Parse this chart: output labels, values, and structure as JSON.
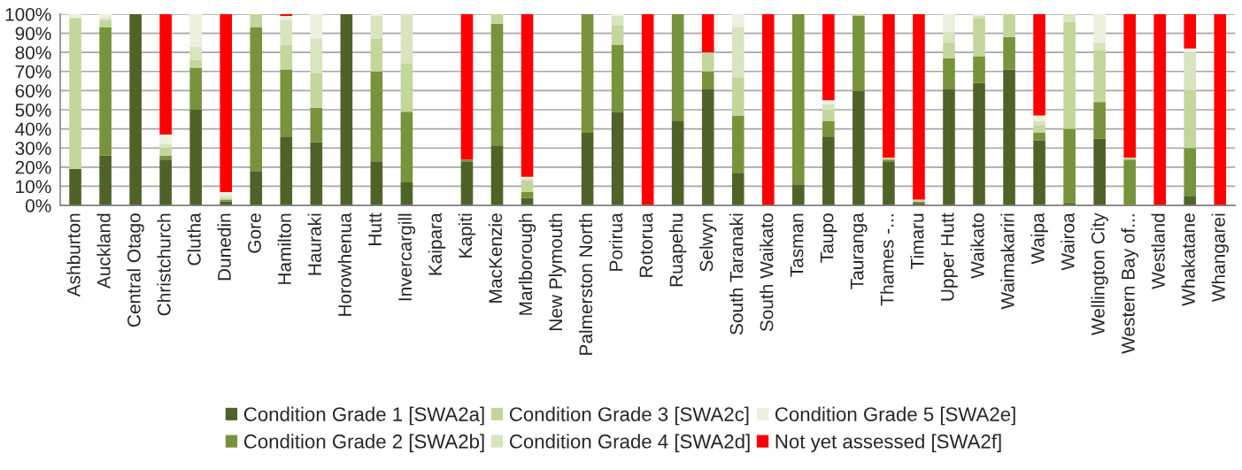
{
  "chart_data": {
    "type": "bar",
    "stacked": true,
    "categories": [
      "Ashburton",
      "Auckland",
      "Central Otago",
      "Christchurch",
      "Clutha",
      "Dunedin",
      "Gore",
      "Hamilton",
      "Hauraki",
      "Horowhenua",
      "Hutt",
      "Invercargill",
      "Kaipara",
      "Kapiti",
      "MacKenzie",
      "Marlborough",
      "New Plymouth",
      "Palmerston North",
      "Porirua",
      "Rotorua",
      "Ruapehu",
      "Selwyn",
      "South Taranaki",
      "South Waikato",
      "Tasman",
      "Taupo",
      "Tauranga",
      "Thames -...",
      "Timaru",
      "Upper Hutt",
      "Waikato",
      "Waimakariri",
      "Waipa",
      "Wairoa",
      "Wellington City",
      "Western Bay of...",
      "Westland",
      "Whakatane",
      "Whangarei"
    ],
    "series": [
      {
        "name": "Condition Grade 1 [SWA2a]",
        "color": "#4f6228",
        "values": [
          19,
          26,
          100,
          24,
          50,
          2,
          18,
          36,
          33,
          100,
          23,
          12,
          null,
          23,
          31,
          4,
          null,
          38,
          49,
          0,
          44,
          61,
          17,
          0,
          11,
          36,
          60,
          23,
          1,
          61,
          64,
          71,
          34,
          1,
          35,
          0,
          0,
          5,
          0
        ]
      },
      {
        "name": "Condition Grade 2 [SWA2b]",
        "color": "#77933c",
        "values": [
          0,
          67,
          0,
          2,
          22,
          1,
          75,
          35,
          18,
          0,
          47,
          37,
          null,
          1,
          64,
          3,
          null,
          62,
          35,
          0,
          56,
          9,
          30,
          0,
          89,
          8,
          39,
          1,
          1,
          16,
          14,
          17,
          4,
          39,
          19,
          24,
          0,
          25,
          0
        ]
      },
      {
        "name": "Condition Grade 3 [SWA2c]",
        "color": "#c3d69b",
        "values": [
          79,
          4,
          0,
          4,
          4,
          1,
          7,
          13,
          18,
          0,
          17,
          25,
          null,
          0,
          5,
          6,
          null,
          0,
          10,
          0,
          0,
          10,
          20,
          0,
          0,
          6,
          1,
          1,
          1,
          8,
          20,
          12,
          4,
          56,
          27,
          1,
          0,
          30,
          0
        ]
      },
      {
        "name": "Condition Grade 4 [SWA2d]",
        "color": "#d7e4bd",
        "values": [
          0,
          1,
          0,
          2,
          7,
          1,
          0,
          13,
          18,
          0,
          12,
          26,
          null,
          0,
          0,
          1,
          null,
          0,
          5,
          0,
          0,
          0,
          26,
          0,
          0,
          3,
          0,
          0,
          0,
          6,
          1,
          0,
          2,
          4,
          4,
          0,
          0,
          20,
          0
        ]
      },
      {
        "name": "Condition Grade 5 [SWA2e]",
        "color": "#ebf1de",
        "values": [
          2,
          2,
          0,
          5,
          17,
          2,
          0,
          2,
          13,
          0,
          1,
          0,
          null,
          0,
          0,
          1,
          null,
          0,
          1,
          0,
          0,
          0,
          7,
          0,
          0,
          2,
          0,
          0,
          0,
          9,
          1,
          0,
          3,
          0,
          15,
          0,
          0,
          2,
          0
        ]
      },
      {
        "name": "Not yet assessed [SWA2f]",
        "color": "#ff0000",
        "values": [
          0,
          0,
          0,
          63,
          0,
          93,
          0,
          1,
          0,
          0,
          0,
          0,
          null,
          76,
          0,
          85,
          null,
          0,
          0,
          100,
          0,
          20,
          0,
          100,
          0,
          45,
          0,
          75,
          97,
          0,
          0,
          0,
          53,
          0,
          0,
          75,
          100,
          18,
          100
        ]
      }
    ],
    "ylim": [
      0,
      100
    ],
    "yticks": [
      {
        "value": 0,
        "label": "0%"
      },
      {
        "value": 10,
        "label": "10%"
      },
      {
        "value": 20,
        "label": "20%"
      },
      {
        "value": 30,
        "label": "30%"
      },
      {
        "value": 40,
        "label": "40%"
      },
      {
        "value": 50,
        "label": "50%"
      },
      {
        "value": 60,
        "label": "60%"
      },
      {
        "value": 70,
        "label": "70%"
      },
      {
        "value": 80,
        "label": "80%"
      },
      {
        "value": 90,
        "label": "90%"
      },
      {
        "value": 100,
        "label": "100%"
      }
    ],
    "grid": "y",
    "legend": "bottom"
  }
}
